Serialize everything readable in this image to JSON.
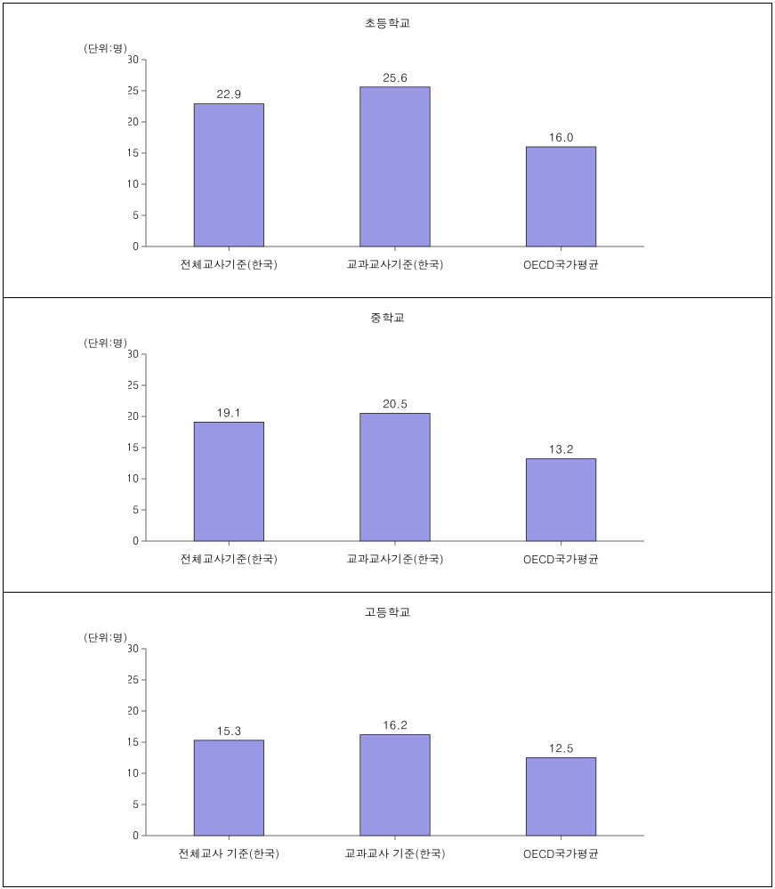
{
  "background_color": "#ffffff",
  "border_color": "#000000",
  "bar_fill": "#9999e6",
  "bar_stroke": "#000000",
  "axis_color": "#666666",
  "label_fontsize": 12,
  "value_fontsize": 13,
  "title_fontsize": 13,
  "charts": [
    {
      "title": "초등학교",
      "y_unit_label": "(단위:명)",
      "type": "bar",
      "ylim": [
        0,
        30
      ],
      "ytick_step": 5,
      "yticks": [
        0,
        5,
        10,
        15,
        20,
        25,
        30
      ],
      "categories": [
        "전체교사기준(한국)",
        "교과교사기준(한국)",
        "OECD국가평균"
      ],
      "values": [
        22.9,
        25.6,
        16.0
      ],
      "value_labels": [
        "22.9",
        "25.6",
        "16.0"
      ],
      "bar_rel_width": 0.42
    },
    {
      "title": "중학교",
      "y_unit_label": "(단위:명)",
      "type": "bar",
      "ylim": [
        0,
        30
      ],
      "ytick_step": 5,
      "yticks": [
        0,
        5,
        10,
        15,
        20,
        25,
        30
      ],
      "categories": [
        "전체교사기준(한국)",
        "교과교사기준(한국)",
        "OECD국가평균"
      ],
      "values": [
        19.1,
        20.5,
        13.2
      ],
      "value_labels": [
        "19.1",
        "20.5",
        "13.2"
      ],
      "bar_rel_width": 0.42
    },
    {
      "title": "고등학교",
      "y_unit_label": "(단위:명)",
      "type": "bar",
      "ylim": [
        0,
        30
      ],
      "ytick_step": 5,
      "yticks": [
        0,
        5,
        10,
        15,
        20,
        25,
        30
      ],
      "categories": [
        "전체교사 기준(한국)",
        "교과교사 기준(한국)",
        "OECD국가평균"
      ],
      "values": [
        15.3,
        16.2,
        12.5
      ],
      "value_labels": [
        "15.3",
        "16.2",
        "12.5"
      ],
      "bar_rel_width": 0.42
    }
  ]
}
